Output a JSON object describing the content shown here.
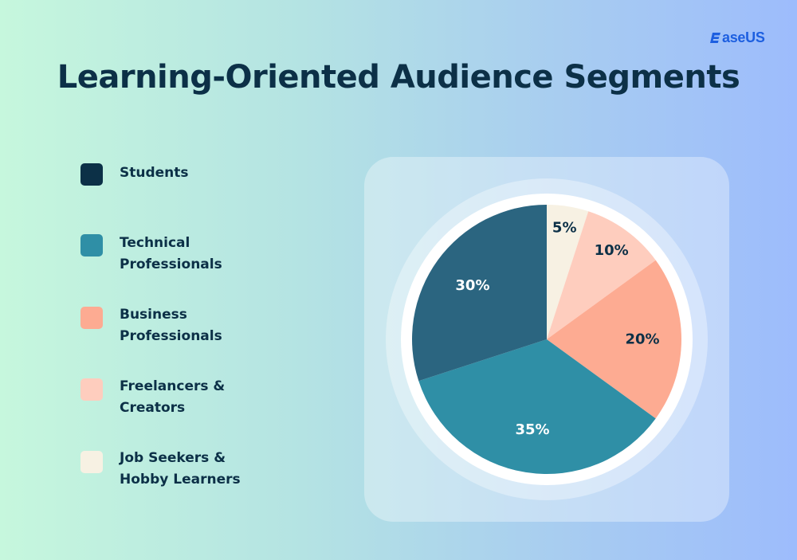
{
  "brand": {
    "logo_text": "aseUS",
    "logo_icon": "easeus-e-icon",
    "logo_color": "#1d5fe0"
  },
  "chart_data": {
    "type": "pie",
    "title": "Learning-Oriented Audience Segments",
    "legend_position": "left",
    "start_angle_deg": 0,
    "direction": "clockwise",
    "categories": [
      "Job Seekers & Hobby Learners",
      "Freelancers & Creators",
      "Business Professionals",
      "Technical Professionals",
      "Students"
    ],
    "values": [
      5,
      10,
      20,
      35,
      30
    ],
    "labels": [
      "5%",
      "10%",
      "20%",
      "35%",
      "30%"
    ],
    "colors": [
      "#f7f1e3",
      "#fecdbe",
      "#fdab92",
      "#2f8fa6",
      "#2b6580"
    ],
    "label_colors": [
      "#0c3047",
      "#0c3047",
      "#0c3047",
      "#ffffff",
      "#ffffff"
    ]
  },
  "legend": [
    {
      "label": "Students",
      "color": "#0c3047"
    },
    {
      "label": "Technical\nProfessionals",
      "color": "#2f8fa6"
    },
    {
      "label": "Business\nProfessionals",
      "color": "#fdab92"
    },
    {
      "label": "Freelancers &\nCreators",
      "color": "#fecdbe"
    },
    {
      "label": "Job Seekers &\nHobby Learners",
      "color": "#f7f1e3"
    }
  ]
}
